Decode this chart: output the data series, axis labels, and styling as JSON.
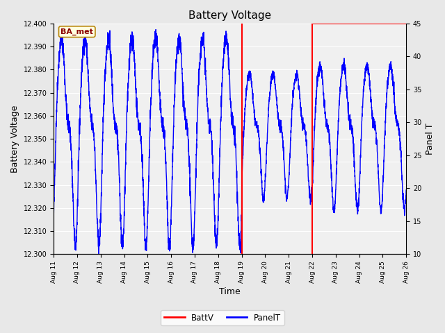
{
  "title": "Battery Voltage",
  "ylabel_left": "Battery Voltage",
  "ylabel_right": "Panel T",
  "xlabel": "Time",
  "ylim_left": [
    12.3,
    12.4
  ],
  "ylim_right": [
    10,
    45
  ],
  "fig_bg": "#e8e8e8",
  "plot_bg": "#f0f0f0",
  "grid_color": "#ffffff",
  "line_color": "blue",
  "vline_color": "red",
  "hline_color": "red",
  "vline1_x": 8.0,
  "vline2_x": 11.0,
  "hline_xstart": 11.0,
  "hline_xend": 15.0,
  "hline_y": 12.4,
  "xlim": [
    0,
    15
  ],
  "xtick_labels": [
    "Aug 11",
    "Aug 12",
    "Aug 13",
    "Aug 14",
    "Aug 15",
    "Aug 16",
    "Aug 17",
    "Aug 18",
    "Aug 19",
    "Aug 20",
    "Aug 21",
    "Aug 22",
    "Aug 23",
    "Aug 24",
    "Aug 25",
    "Aug 26"
  ],
  "yticks_left": [
    12.3,
    12.31,
    12.32,
    12.33,
    12.34,
    12.35,
    12.36,
    12.37,
    12.38,
    12.39,
    12.4
  ],
  "yticks_right": [
    10,
    15,
    20,
    25,
    30,
    35,
    40,
    45
  ],
  "annotation": "BA_met",
  "legend_labels": [
    "BattV",
    "PanelT"
  ],
  "legend_colors": [
    "red",
    "blue"
  ],
  "wave_seed": 42,
  "wave_base": 12.355,
  "wave_amp": 0.038,
  "wave_npts": 3000,
  "figsize": [
    6.4,
    4.8
  ],
  "dpi": 100
}
